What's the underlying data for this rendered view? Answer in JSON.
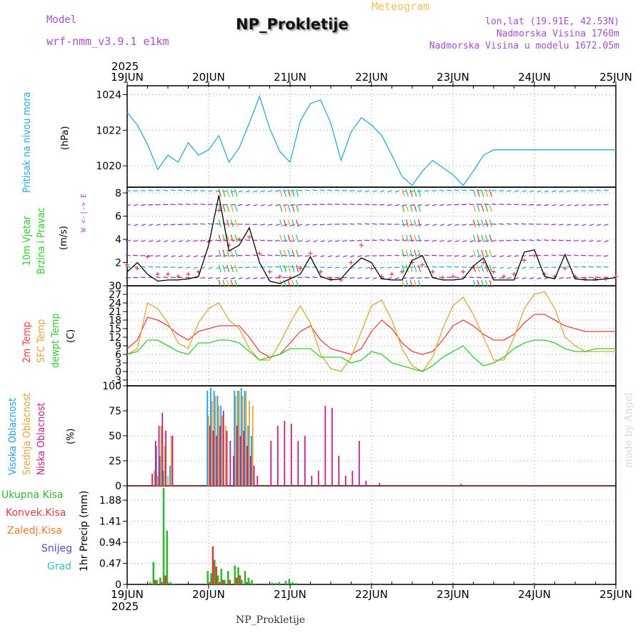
{
  "header": {
    "model_label": "Model",
    "model_name": "wrf-nmm_v3.9.1 e1km",
    "title": "NP_Prokletije",
    "meteogram_label": "Meteogram",
    "lonlat": "lon,lat (19.91E, 42.53N)",
    "elevation": "Nadmorska Visina 1760m",
    "model_elevation": "Nadmorska Visina u modelu 1672.05m",
    "credit": "made by Angel",
    "footer_title": "NP_Prokletije"
  },
  "time_axis": {
    "year": "2025",
    "ticks": [
      "19JUN",
      "20JUN",
      "21JUN",
      "22JUN",
      "23JUN",
      "24JUN",
      "25JUN"
    ]
  },
  "colors": {
    "pressure": "#2aa8e0",
    "wind_speed": "#000000",
    "wind_gust": "#e8413c",
    "temp_2m": "#e8413c",
    "temp_sfc": "#e0a53a",
    "dewpoint": "#2ecc2e",
    "cloud_high": "#1ea0e8",
    "cloud_mid": "#e0a53a",
    "cloud_low": "#c21f82",
    "precip_total": "#2eb82e",
    "precip_conv": "#e03a3a",
    "precip_frozen": "#f07a2a",
    "precip_snow": "#4a4ad0",
    "precip_graupel": "#3ac0c0"
  },
  "panels": {
    "pressure": {
      "label": "Pritisak na nivou mora",
      "unit": "(hPa)"
    },
    "wind": {
      "label1": "10m Vjetar",
      "label2": "Brzina i Pravac",
      "unit": "(m/s)",
      "compass": "W  <-|->  E"
    },
    "temp": {
      "label1": "2m Temp",
      "label2": "SFC Temp",
      "label3": "dewpt Temp",
      "unit": "(C)"
    },
    "cloud": {
      "label1": "Visoka Oblacnost",
      "label2": "Srednja Oblacnost",
      "label3": "Niska Oblacnost",
      "unit": "(%)"
    },
    "precip": {
      "unit": "1hr Precip (mm)",
      "legend": [
        "Ukupna Kisa",
        "Konvek.Kisa",
        "Zaledj.Kisa",
        "Snijeg",
        "Grad"
      ]
    }
  },
  "chart_data": [
    {
      "type": "line",
      "title": "Pritisak na nivou mora",
      "ylabel": "(hPa)",
      "ylim": [
        1018.8,
        1024.5
      ],
      "yticks": [
        "1020",
        "1022",
        "1024"
      ],
      "grid": true,
      "x_hours": [
        0,
        3,
        6,
        9,
        12,
        15,
        18,
        21,
        24,
        27,
        30,
        33,
        36,
        39,
        42,
        45,
        48,
        51,
        54,
        57,
        60,
        63,
        66,
        69,
        72,
        75,
        78,
        81,
        84,
        87,
        90,
        93,
        96,
        99,
        102,
        105,
        108,
        111,
        114,
        117,
        120,
        123,
        126,
        129,
        132,
        135,
        138,
        141,
        144
      ],
      "series": [
        {
          "values": [
            1023.0,
            1022.3,
            1021.2,
            1019.8,
            1020.6,
            1020.2,
            1021.3,
            1020.6,
            1020.9,
            1021.7,
            1020.2,
            1021.0,
            1022.4,
            1023.9,
            1022.1,
            1020.8,
            1020.2,
            1022.5,
            1023.5,
            1023.7,
            1022.4,
            1020.3,
            1021.9,
            1022.7,
            1022.3,
            1021.7,
            1020.6,
            1019.4,
            1018.9,
            1019.7,
            1020.3,
            1019.9,
            1019.5,
            1018.9,
            1019.7,
            1020.6,
            1020.9,
            1020.9,
            1020.9,
            1020.9,
            1020.9,
            1020.9,
            1020.9,
            1020.9,
            1020.9,
            1020.9,
            1020.9,
            1020.9,
            1020.9
          ]
        }
      ]
    },
    {
      "type": "line",
      "title": "10m Vjetar Brzina i Pravac",
      "ylabel": "(m/s)",
      "ylim": [
        0,
        8.5
      ],
      "yticks": [
        "0",
        "2",
        "4",
        "6",
        "8"
      ],
      "grid": true,
      "x_hours": [
        0,
        3,
        6,
        9,
        12,
        15,
        18,
        21,
        24,
        27,
        30,
        33,
        36,
        39,
        42,
        45,
        48,
        51,
        54,
        57,
        60,
        63,
        66,
        69,
        72,
        75,
        78,
        81,
        84,
        87,
        90,
        93,
        96,
        99,
        102,
        105,
        108,
        111,
        114,
        117,
        120,
        123,
        126,
        129,
        132,
        135,
        138,
        141,
        144
      ],
      "series": [
        {
          "name": "speed",
          "values": [
            1.2,
            2.0,
            1.0,
            0.4,
            0.5,
            0.5,
            0.6,
            0.8,
            3.5,
            7.8,
            3.0,
            3.5,
            5.0,
            2.0,
            0.4,
            0.2,
            0.6,
            1.0,
            2.5,
            0.8,
            0.5,
            0.6,
            1.6,
            2.4,
            2.0,
            0.6,
            0.5,
            0.5,
            2.2,
            2.6,
            0.7,
            0.5,
            0.5,
            0.6,
            1.7,
            2.4,
            0.5,
            0.5,
            0.5,
            2.9,
            3.1,
            0.8,
            0.6,
            2.7,
            0.6,
            0.5,
            0.5,
            0.6,
            0.7
          ]
        },
        {
          "name": "gust",
          "values": [
            1.8,
            1.5,
            2.5,
            1.0,
            1.0,
            0.8,
            1.0,
            1.2,
            3.8,
            6.5,
            3.5,
            4.0,
            4.2,
            2.8,
            1.2,
            0.8,
            0.7,
            1.5,
            2.8,
            1.2,
            0.6,
            0.5,
            2.0,
            3.5,
            1.5,
            0.8,
            1.0,
            1.2,
            2.0,
            1.8,
            1.2,
            0.7,
            0.8,
            1.2,
            1.6,
            2.0,
            1.2,
            0.8,
            1.0,
            2.2,
            2.6,
            1.0,
            0.8,
            1.5,
            0.8,
            0.6,
            0.6,
            0.6,
            0.8
          ]
        }
      ]
    },
    {
      "type": "line",
      "title": "Temperature",
      "ylabel": "(C)",
      "ylim": [
        -5,
        30
      ],
      "yticks": [
        "-3",
        "0",
        "3",
        "6",
        "9",
        "12",
        "15",
        "18",
        "21",
        "24",
        "27",
        "30"
      ],
      "grid": true,
      "x_hours": [
        0,
        3,
        6,
        9,
        12,
        15,
        18,
        21,
        24,
        27,
        30,
        33,
        36,
        39,
        42,
        45,
        48,
        51,
        54,
        57,
        60,
        63,
        66,
        69,
        72,
        75,
        78,
        81,
        84,
        87,
        90,
        93,
        96,
        99,
        102,
        105,
        108,
        111,
        114,
        117,
        120,
        123,
        126,
        129,
        132,
        135,
        138,
        141,
        144
      ],
      "series": [
        {
          "name": "2m Temp",
          "values": [
            8,
            11,
            19,
            18,
            16,
            13,
            11,
            14,
            15,
            16,
            16,
            16,
            12,
            7,
            5,
            6,
            10,
            14,
            16,
            11,
            8,
            7,
            6,
            8,
            14,
            18,
            15,
            10,
            7,
            6,
            7,
            11,
            16,
            18,
            16,
            13,
            11,
            11,
            13,
            17,
            20,
            20,
            18,
            16,
            15,
            14,
            14,
            14,
            14
          ]
        },
        {
          "name": "SFC Temp",
          "values": [
            6,
            8,
            24,
            22,
            17,
            10,
            8,
            17,
            22,
            24,
            18,
            15,
            8,
            4,
            4,
            10,
            17,
            23,
            17,
            6,
            1,
            0,
            5,
            14,
            23,
            25,
            18,
            8,
            2,
            0,
            5,
            15,
            23,
            26,
            20,
            12,
            4,
            4,
            12,
            22,
            27,
            28,
            22,
            12,
            9,
            7,
            7,
            7,
            7
          ]
        },
        {
          "name": "dewpt Temp",
          "values": [
            6,
            7,
            11,
            11,
            9,
            7,
            6,
            10,
            10,
            11,
            11,
            10,
            7,
            4,
            5,
            6,
            8,
            8,
            8,
            5,
            5,
            5,
            3,
            4,
            7,
            6,
            3,
            2,
            1,
            0,
            2,
            5,
            7,
            9,
            5,
            2,
            3,
            5,
            8,
            10,
            11,
            11,
            10,
            8,
            7,
            7,
            8,
            8,
            8
          ]
        }
      ]
    },
    {
      "type": "bar",
      "title": "Oblacnost",
      "ylabel": "(%)",
      "ylim": [
        0,
        100
      ],
      "yticks": [
        "0",
        "25",
        "50",
        "75",
        "100"
      ],
      "grid": true,
      "x_hours": [
        7,
        8,
        9,
        10,
        11,
        12,
        13,
        14,
        24,
        25,
        26,
        27,
        28,
        29,
        30,
        31,
        32,
        33,
        34,
        35,
        36,
        37,
        38,
        42,
        44,
        46,
        48,
        50,
        52,
        54,
        56,
        58,
        60,
        62,
        64,
        66,
        68,
        70,
        72,
        74,
        76,
        98
      ],
      "series": [
        {
          "name": "Visoka Oblacnost",
          "values": [
            0,
            0,
            40,
            30,
            15,
            0,
            20,
            0,
            95,
            98,
            95,
            90,
            80,
            0,
            0,
            0,
            95,
            95,
            98,
            95,
            60,
            50,
            0,
            0,
            0,
            0,
            0,
            0,
            0,
            0,
            0,
            0,
            0,
            0,
            0,
            0,
            0,
            0,
            0,
            0,
            0,
            0
          ]
        },
        {
          "name": "Srednja Oblacnost",
          "values": [
            0,
            15,
            10,
            60,
            40,
            10,
            50,
            0,
            70,
            85,
            90,
            80,
            70,
            60,
            0,
            0,
            90,
            95,
            90,
            95,
            85,
            80,
            0,
            0,
            0,
            0,
            0,
            0,
            0,
            0,
            0,
            0,
            0,
            0,
            0,
            0,
            0,
            0,
            0,
            0,
            0,
            0
          ]
        },
        {
          "name": "Niska Oblacnost",
          "values": [
            12,
            45,
            60,
            73,
            55,
            0,
            50,
            0,
            60,
            55,
            50,
            60,
            75,
            55,
            45,
            30,
            60,
            50,
            55,
            40,
            30,
            20,
            10,
            45,
            60,
            65,
            62,
            45,
            50,
            10,
            15,
            80,
            78,
            30,
            10,
            15,
            45,
            5,
            0,
            3,
            0,
            2
          ]
        }
      ]
    },
    {
      "type": "bar",
      "title": "1hr Precip",
      "ylabel": "1hr Precip (mm)",
      "ylim": [
        0,
        2.2
      ],
      "yticks": [
        "0",
        "0.47",
        "0.94",
        "1.41",
        "1.88"
      ],
      "grid": true,
      "x_hours": [
        7,
        8,
        9,
        10,
        11,
        12,
        13,
        14,
        24,
        25,
        26,
        27,
        28,
        29,
        30,
        32,
        33,
        34,
        35,
        36,
        37,
        38,
        42,
        43,
        44,
        45,
        47,
        48,
        49,
        50,
        72,
        75,
        120,
        140
      ],
      "series": [
        {
          "name": "Ukupna Kisa",
          "values": [
            0.05,
            0.5,
            0.1,
            0.15,
            2.15,
            1.2,
            0.05,
            0.02,
            0.3,
            0.25,
            0.55,
            0.2,
            0.35,
            0.1,
            0.3,
            0.42,
            0.38,
            0.1,
            0.3,
            0.15,
            0.1,
            0.02,
            0.02,
            0.04,
            0.03,
            0.05,
            0.08,
            0.12,
            0.05,
            0.03,
            0.02,
            0.02,
            0.03,
            0.02
          ]
        },
        {
          "name": "Konvek.Kisa",
          "values": [
            0,
            0.1,
            0,
            0.05,
            0.2,
            0,
            0,
            0,
            0.05,
            0.85,
            0.4,
            0.05,
            0.1,
            0,
            0.1,
            0.15,
            0.2,
            0,
            0.05,
            0,
            0,
            0,
            0,
            0,
            0,
            0,
            0,
            0,
            0,
            0,
            0,
            0,
            0,
            0
          ]
        }
      ]
    }
  ]
}
